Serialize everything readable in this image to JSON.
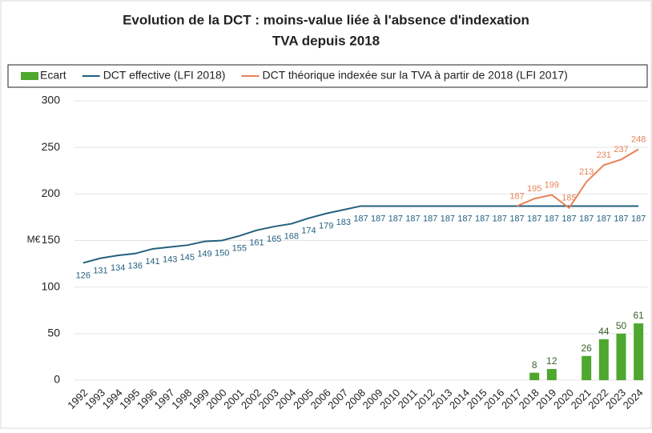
{
  "chart_data": {
    "type": "bar-line",
    "title": [
      "Evolution de la DCT : moins-value liée à l'absence d'indexation",
      "TVA depuis 2018"
    ],
    "y_label": "M€",
    "categories": [
      "1992",
      "1993",
      "1994",
      "1995",
      "1996",
      "1997",
      "1998",
      "1999",
      "2000",
      "2001",
      "2002",
      "2003",
      "2004",
      "2005",
      "2006",
      "2007",
      "2008",
      "2009",
      "2010",
      "2011",
      "2012",
      "2013",
      "2014",
      "2015",
      "2016",
      "2017",
      "2018",
      "2019",
      "2020",
      "2021",
      "2022",
      "2023",
      "2024"
    ],
    "series": [
      {
        "name": "Ecart",
        "type": "bar",
        "color": "#4ea72e",
        "values": [
          null,
          null,
          null,
          null,
          null,
          null,
          null,
          null,
          null,
          null,
          null,
          null,
          null,
          null,
          null,
          null,
          null,
          null,
          null,
          null,
          null,
          null,
          null,
          null,
          null,
          null,
          8,
          12,
          null,
          26,
          44,
          50,
          61
        ]
      },
      {
        "name": "DCT effective (LFI 2018)",
        "type": "line",
        "color": "#24607f",
        "values": [
          126,
          131,
          134,
          136,
          141,
          143,
          145,
          149,
          150,
          155,
          161,
          165,
          168,
          174,
          179,
          183,
          187,
          187,
          187,
          187,
          187,
          187,
          187,
          187,
          187,
          187,
          187,
          187,
          187,
          187,
          187,
          187,
          187
        ]
      },
      {
        "name": "DCT théorique indexée sur la TVA à partir de 2018 (LFI 2017)",
        "type": "line",
        "color": "#e8825a",
        "values": [
          null,
          null,
          null,
          null,
          null,
          null,
          null,
          null,
          null,
          null,
          null,
          null,
          null,
          null,
          null,
          null,
          null,
          null,
          null,
          null,
          null,
          null,
          null,
          null,
          null,
          187,
          195,
          199,
          185,
          213,
          231,
          237,
          248
        ]
      }
    ],
    "ylim": [
      0,
      300
    ],
    "yticks": [
      0,
      50,
      100,
      150,
      200,
      250,
      300
    ],
    "grid": true,
    "legend": "top"
  }
}
